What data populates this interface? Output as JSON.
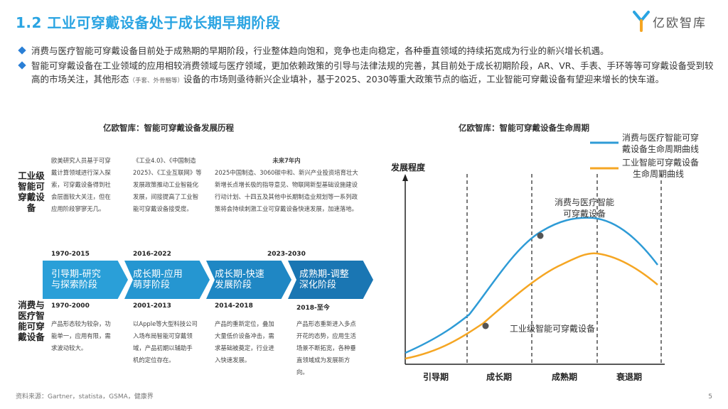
{
  "header": {
    "title": "1.2 工业可穿戴设备处于成长期早期阶段",
    "logo_text": "亿欧智库"
  },
  "bullets": {
    "b1": "消费与医疗智能可穿戴设备目前处于成熟期的早期阶段，行业整体趋向饱和，竞争也走向稳定，各种垂直领域的持续拓宽成为行业的新兴增长机遇。",
    "b2_part1": "智能可穿戴设备在工业领域的应用相较消费领域与医疗领域，更加依赖政策的引导与法律法规的完善，其目前处于成长初期阶段，AR、VR、手表、手环等等可穿戴设备受到较高的市场关注，其他形态",
    "b2_small": "（手套、外骨骼等）",
    "b2_part2": "设备的市场则亟待新兴企业填补，基于2025、2030等重大政策节点的临近，工业智能可穿戴设备有望迎来增长的快车道。"
  },
  "timeline": {
    "title": "亿欧智库：智能可穿戴设备发展历程",
    "industrial_label": "工业级智能可穿戴设备",
    "consumer_label": "消费与医疗智能可穿戴设备",
    "industrial_texts": [
      "欧美研究人员基于可穿戴计算领域进行深入探索，可穿戴设备得到社会层面较大关注，但在应用阶段寥寥无几。",
      "《工业4.0》、《中国制造2025》、《工业互联网》等发展政策推动工业智能化发展，间接提高了工业智能可穿戴设备接受度。"
    ],
    "future_title": "未来7年内",
    "future_text": "2025中国制造、3060碳中和、新兴产业投资培育壮大新增长点增长极的指导意见、物联网新型基础设施建设行动计划、十四五及其他中长期制造业规划等一系列政策将会持续刺激工业可穿戴设备快速发展，加速落地。",
    "industrial_years": [
      "1970-2015",
      "2016-2022",
      "2023-2030"
    ],
    "stages": [
      {
        "line1": "引导期-研究",
        "line2": "与探索阶段"
      },
      {
        "line1": "成长期-应用",
        "line2": "萌芽阶段"
      },
      {
        "line1": "成长期-快速",
        "line2": "发展阶段"
      },
      {
        "line1": "成熟期-调整",
        "line2": "深化阶段"
      }
    ],
    "consumer_years": [
      "1970-2000",
      "2001-2013",
      "2014-2018",
      "2018-至今"
    ],
    "consumer_texts": [
      "产品形态较为较杂，功能单一，应用有限，需求波动较大。",
      "以Apple等大型科技公司入场布局智能可穿戴领域，产品初期以辅助手机的定位存在。",
      "产品的重新定位，叠加大量低价设备冲击，需求基础被奠定，行业进入快速发展。",
      "产品形态重新进入多点开花的态势，应用生活场景不断拓宽，各种垂直领域成为发展新方向。"
    ],
    "colors": {
      "stage1": "#2a9fd8",
      "stage2": "#2596d1",
      "stage3": "#1f87c4",
      "stage4": "#1a76b3"
    }
  },
  "lifecycle": {
    "title": "亿欧智库：智能可穿戴设备生命周期",
    "ylabel": "发展程度",
    "legend": [
      {
        "label_line1": "消费与医疗智能可穿",
        "label_line2": "戴设备生命周期曲线",
        "color": "#2e9bd6"
      },
      {
        "label_line1": "工业智能可穿戴设备",
        "label_line2": "生命周期曲线",
        "color": "#f5a623"
      }
    ],
    "phases": [
      "引导期",
      "成长期",
      "成熟期",
      "衰退期"
    ],
    "annotation_consumer_line1": "消费与医疗智能",
    "annotation_consumer_line2": "可穿戴设备",
    "annotation_industrial": "工业级智能可穿戴设备"
  },
  "footer": {
    "source": "资料来源：Gartner，statista，GSMA，健康界",
    "page": "5"
  }
}
